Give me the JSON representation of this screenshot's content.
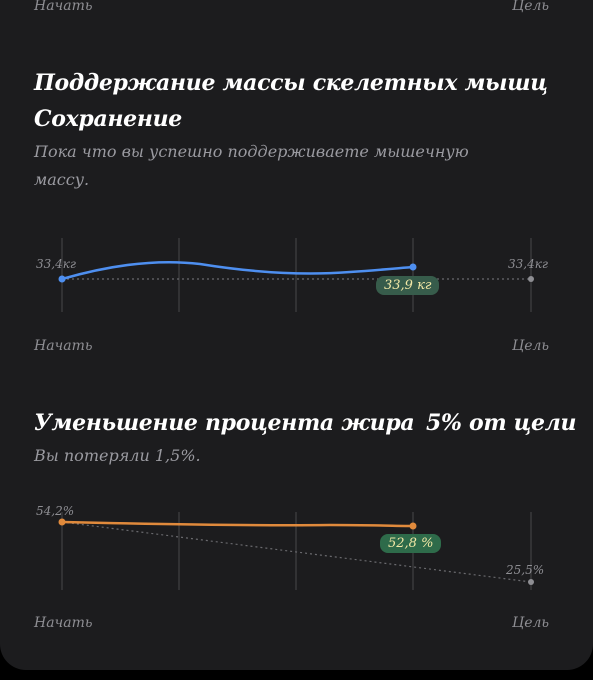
{
  "top_axis": {
    "start": "Начать",
    "goal": "Цель"
  },
  "muscle": {
    "title": "Поддержание массы скелетных мышц",
    "status": "Сохранение",
    "description_line1": "Пока что вы успешно поддерживаете мышечную",
    "description_line2": "массу.",
    "start_value": "33,4кг",
    "goal_value": "33,4кг",
    "current_badge": "33,9 кг",
    "axis_start": "Начать",
    "axis_goal": "Цель",
    "line_color": "#4e8ff0",
    "badge_color": "#375c4b"
  },
  "fat": {
    "title": "Уменьшение процента жира",
    "goal_progress": "5% от цели",
    "description": "Вы потеряли 1,5%.",
    "start_value": "54,2%",
    "goal_value": "25,5%",
    "current_badge": "52,8 %",
    "axis_start": "Начать",
    "axis_goal": "Цель",
    "line_color": "#e08a3c",
    "badge_color": "#2e6b4a"
  }
}
